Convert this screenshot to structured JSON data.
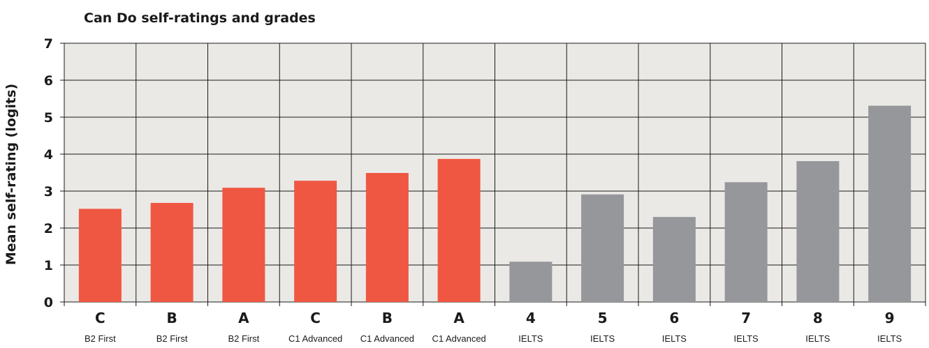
{
  "chart_data": {
    "type": "bar",
    "title": "Can Do self-ratings and grades",
    "ylabel": "Mean self-rating (logits)",
    "xlabel": "",
    "ylim": [
      0,
      7
    ],
    "yticks": [
      "0",
      "1",
      "2",
      "3",
      "4",
      "5",
      "6",
      "7"
    ],
    "grid": true,
    "legend": "none",
    "categories": [
      {
        "grade": "C",
        "exam": "B2 First",
        "value": 2.52,
        "color": "#ef5742"
      },
      {
        "grade": "B",
        "exam": "B2 First",
        "value": 2.68,
        "color": "#ef5742"
      },
      {
        "grade": "A",
        "exam": "B2 First",
        "value": 3.09,
        "color": "#ef5742"
      },
      {
        "grade": "C",
        "exam": "C1 Advanced",
        "value": 3.28,
        "color": "#ef5742"
      },
      {
        "grade": "B",
        "exam": "C1 Advanced",
        "value": 3.49,
        "color": "#ef5742"
      },
      {
        "grade": "A",
        "exam": "C1 Advanced",
        "value": 3.87,
        "color": "#ef5742"
      },
      {
        "grade": "4",
        "exam": "IELTS",
        "value": 1.09,
        "color": "#96979b"
      },
      {
        "grade": "5",
        "exam": "IELTS",
        "value": 2.91,
        "color": "#96979b"
      },
      {
        "grade": "6",
        "exam": "IELTS",
        "value": 2.3,
        "color": "#96979b"
      },
      {
        "grade": "7",
        "exam": "IELTS",
        "value": 3.24,
        "color": "#96979b"
      },
      {
        "grade": "8",
        "exam": "IELTS",
        "value": 3.81,
        "color": "#96979b"
      },
      {
        "grade": "9",
        "exam": "IELTS",
        "value": 5.31,
        "color": "#96979b"
      }
    ],
    "colors": {
      "plot_background": "#ebe9e6",
      "grid": "#1a1a1a"
    }
  }
}
